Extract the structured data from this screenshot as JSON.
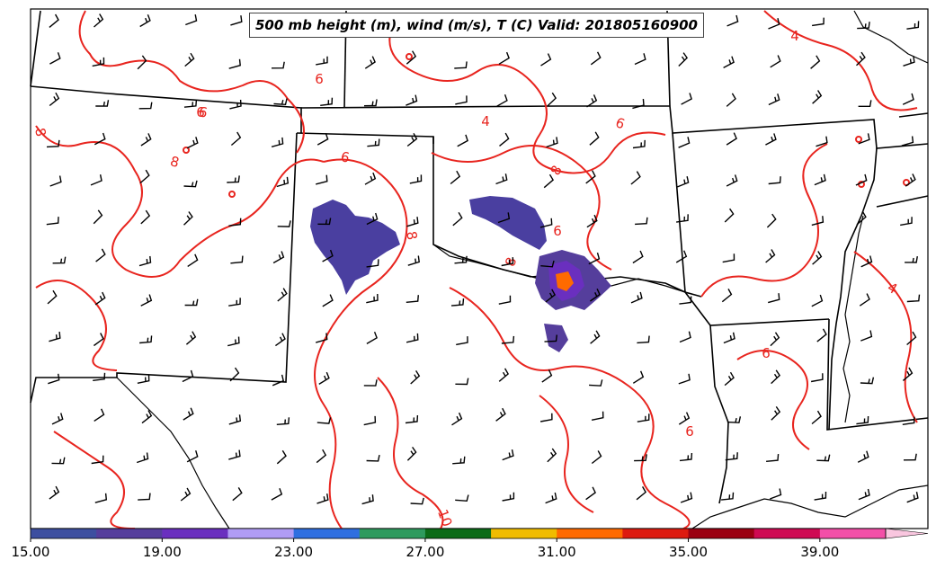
{
  "title": "500 mb height (m), wind (m/s), T (C) Valid: 201805160900",
  "colorbar": {
    "colors": [
      "#3d4fa0",
      "#553e9c",
      "#6a2fbf",
      "#b09cf5",
      "#2f6fe0",
      "#2e9a5e",
      "#0b6b17",
      "#f0bc00",
      "#ff6a00",
      "#dd1a0f",
      "#9b0012",
      "#cf0a53",
      "#f34fa8"
    ],
    "extend_color": "#f9c6df",
    "ticks": [
      "15.00",
      "19.00",
      "23.00",
      "27.00",
      "31.00",
      "35.00",
      "39.00"
    ]
  },
  "contour_labels": [
    "6",
    "6",
    "6",
    "6",
    "8",
    "8",
    "8",
    "8",
    "8",
    "6",
    "4",
    "4",
    "4",
    "4",
    "6",
    "6",
    "6",
    "10"
  ],
  "colors": {
    "temperature_contour": "#e8251f",
    "borders": "#000000",
    "reflectivity_main": "#4a3fa0"
  }
}
